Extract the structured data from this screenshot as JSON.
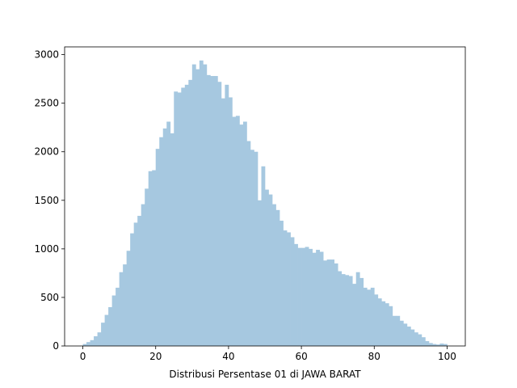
{
  "chart_data": {
    "type": "bar",
    "subtype": "histogram",
    "title": "",
    "xlabel": "Distribusi Persentase 01 di JAWA BARAT",
    "ylabel": "",
    "xlim": [
      -5,
      105
    ],
    "ylim": [
      0,
      3080
    ],
    "xticks": [
      0,
      20,
      40,
      60,
      80,
      100
    ],
    "yticks": [
      0,
      500,
      1000,
      1500,
      2000,
      2500,
      3000
    ],
    "bar_color": "#a6c8e0",
    "grid": false,
    "legend": "none",
    "bins": {
      "start": 0,
      "end": 100,
      "count": 100
    },
    "counts": [
      20,
      40,
      60,
      100,
      140,
      240,
      320,
      400,
      520,
      600,
      760,
      840,
      980,
      1160,
      1270,
      1340,
      1460,
      1620,
      1800,
      1810,
      2030,
      2150,
      2240,
      2310,
      2190,
      2620,
      2610,
      2660,
      2690,
      2740,
      2900,
      2850,
      2940,
      2900,
      2790,
      2780,
      2780,
      2720,
      2550,
      2690,
      2560,
      2360,
      2370,
      2280,
      2310,
      2110,
      2020,
      2000,
      1500,
      1850,
      1610,
      1560,
      1460,
      1400,
      1290,
      1190,
      1170,
      1120,
      1050,
      1010,
      1010,
      1020,
      1000,
      960,
      990,
      970,
      880,
      890,
      890,
      850,
      770,
      740,
      730,
      720,
      640,
      760,
      700,
      600,
      580,
      600,
      530,
      490,
      460,
      440,
      410,
      310,
      310,
      260,
      230,
      200,
      170,
      140,
      120,
      90,
      50,
      30,
      20,
      15,
      25,
      20
    ]
  }
}
